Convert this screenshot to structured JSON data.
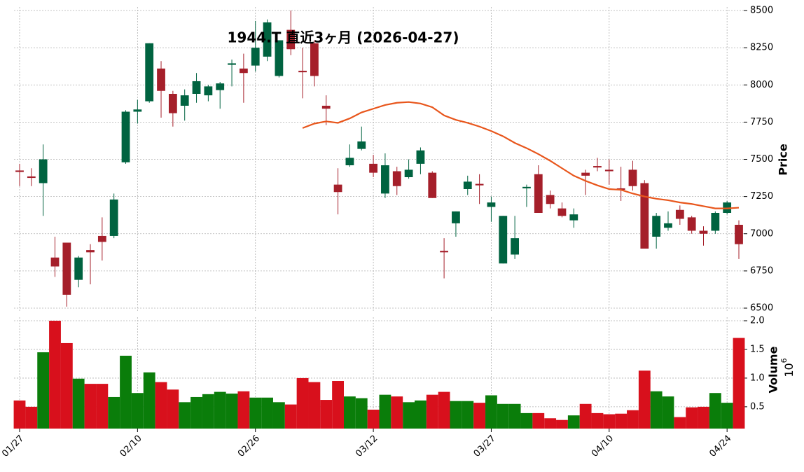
{
  "chart_data": {
    "type": "candlestick",
    "title": "1944.T 直近3ヶ月 (2026-04-27)",
    "categories": [
      "01/27",
      null,
      null,
      null,
      null,
      null,
      null,
      null,
      null,
      null,
      "02/10",
      null,
      null,
      null,
      null,
      null,
      null,
      null,
      null,
      null,
      "02/26",
      null,
      null,
      null,
      null,
      null,
      null,
      null,
      null,
      null,
      "03/12",
      null,
      null,
      null,
      null,
      null,
      null,
      null,
      null,
      null,
      "03/27",
      null,
      null,
      null,
      null,
      null,
      null,
      null,
      null,
      null,
      "04/10",
      null,
      null,
      null,
      null,
      null,
      null,
      null,
      null,
      null,
      "04/24",
      null
    ],
    "open": [
      7425,
      7385,
      7340,
      6840,
      6940,
      6690,
      6890,
      6985,
      6985,
      7480,
      7820,
      7890,
      8110,
      7940,
      7860,
      7940,
      7930,
      7965,
      8135,
      8110,
      8130,
      8190,
      8060,
      8370,
      8095,
      8280,
      7860,
      7330,
      7460,
      7570,
      7470,
      7270,
      7420,
      7380,
      7470,
      7410,
      6885,
      7070,
      7300,
      7335,
      7180,
      6800,
      6860,
      7305,
      7400,
      7260,
      7170,
      7090,
      7410,
      7455,
      7430,
      7305,
      7430,
      7340,
      6980,
      7040,
      7160,
      7110,
      7020,
      7020,
      7140,
      7060
    ],
    "high": [
      7470,
      7440,
      7600,
      6980,
      6940,
      6850,
      6930,
      7110,
      7270,
      7830,
      7900,
      8280,
      8160,
      7960,
      7970,
      8080,
      8000,
      8020,
      8170,
      8210,
      8430,
      8440,
      8300,
      8500,
      8250,
      8300,
      7930,
      7440,
      7600,
      7720,
      7530,
      7540,
      7450,
      7500,
      7580,
      7420,
      6970,
      7150,
      7390,
      7400,
      7250,
      7120,
      7120,
      7330,
      7460,
      7290,
      7210,
      7170,
      7430,
      7510,
      7500,
      7450,
      7490,
      7360,
      7140,
      7150,
      7190,
      7120,
      7050,
      7150,
      7220,
      7090
    ],
    "low": [
      7320,
      7320,
      7120,
      6710,
      6510,
      6640,
      6660,
      6820,
      6970,
      7470,
      7740,
      7880,
      7780,
      7720,
      7760,
      7880,
      7890,
      7840,
      7990,
      7880,
      8090,
      8160,
      8050,
      8200,
      7910,
      7990,
      7730,
      7130,
      7450,
      7560,
      7380,
      7240,
      7260,
      7370,
      7400,
      7240,
      6700,
      6980,
      7260,
      7200,
      7080,
      6800,
      6830,
      7180,
      7140,
      7170,
      7110,
      7040,
      7260,
      7420,
      7330,
      7220,
      7290,
      6900,
      6900,
      7020,
      7060,
      7000,
      6920,
      7000,
      7130,
      6830
    ],
    "close": [
      7415,
      7375,
      7500,
      6780,
      6590,
      6840,
      6875,
      6945,
      7230,
      7820,
      7835,
      8280,
      7960,
      7810,
      7930,
      8025,
      7990,
      8010,
      8145,
      8080,
      8250,
      8420,
      8300,
      8240,
      8085,
      8060,
      7840,
      7280,
      7510,
      7620,
      7410,
      7460,
      7320,
      7430,
      7560,
      7240,
      6875,
      7150,
      7350,
      7325,
      7210,
      7120,
      6970,
      7315,
      7140,
      7200,
      7120,
      7130,
      7390,
      7445,
      7420,
      7295,
      7320,
      6900,
      7120,
      7070,
      7100,
      7020,
      7000,
      7140,
      7210,
      6930
    ],
    "up_color": "#006340",
    "down_color": "#a51f2a",
    "ma": {
      "color": "#e8561c",
      "values": [
        null,
        null,
        null,
        null,
        null,
        null,
        null,
        null,
        null,
        null,
        null,
        null,
        null,
        null,
        null,
        null,
        null,
        null,
        null,
        null,
        null,
        null,
        null,
        null,
        7710,
        7740,
        7755,
        7745,
        7775,
        7815,
        7840,
        7865,
        7880,
        7885,
        7875,
        7850,
        7795,
        7765,
        7745,
        7720,
        7690,
        7655,
        7610,
        7575,
        7535,
        7490,
        7440,
        7390,
        7355,
        7325,
        7300,
        7295,
        7270,
        7250,
        7235,
        7225,
        7210,
        7200,
        7185,
        7170,
        7170,
        7175
      ]
    },
    "ylabel": "Price",
    "ylim": [
      6500,
      8500
    ],
    "yticks": [
      6500,
      6750,
      7000,
      7250,
      7500,
      7750,
      8000,
      8250,
      8500
    ],
    "grid": true,
    "volume": {
      "ylabel": "Volume",
      "exponent_base": "10",
      "exponent": "6",
      "up_color": "#0a7d0a",
      "down_color": "#d8101c",
      "ylim": [
        0.12,
        2.0
      ],
      "yticks": [
        0.5,
        {
          "value": 1,
          "label": "1.0"
        },
        1.5,
        {
          "value": 2,
          "label": "2.0"
        }
      ],
      "values": [
        0.61,
        0.5,
        1.45,
        2.0,
        1.61,
        0.99,
        0.9,
        0.9,
        0.67,
        1.39,
        0.74,
        1.1,
        0.93,
        0.8,
        0.58,
        0.67,
        0.72,
        0.76,
        0.73,
        0.77,
        0.66,
        0.66,
        0.58,
        0.54,
        1.0,
        0.93,
        0.62,
        0.95,
        0.68,
        0.65,
        0.45,
        0.71,
        0.68,
        0.58,
        0.61,
        0.71,
        0.76,
        0.6,
        0.6,
        0.57,
        0.7,
        0.55,
        0.55,
        0.39,
        0.39,
        0.3,
        0.27,
        0.35,
        0.55,
        0.39,
        0.37,
        0.38,
        0.44,
        1.13,
        0.77,
        0.68,
        0.32,
        0.49,
        0.5,
        0.74,
        0.57,
        1.7
      ]
    }
  }
}
